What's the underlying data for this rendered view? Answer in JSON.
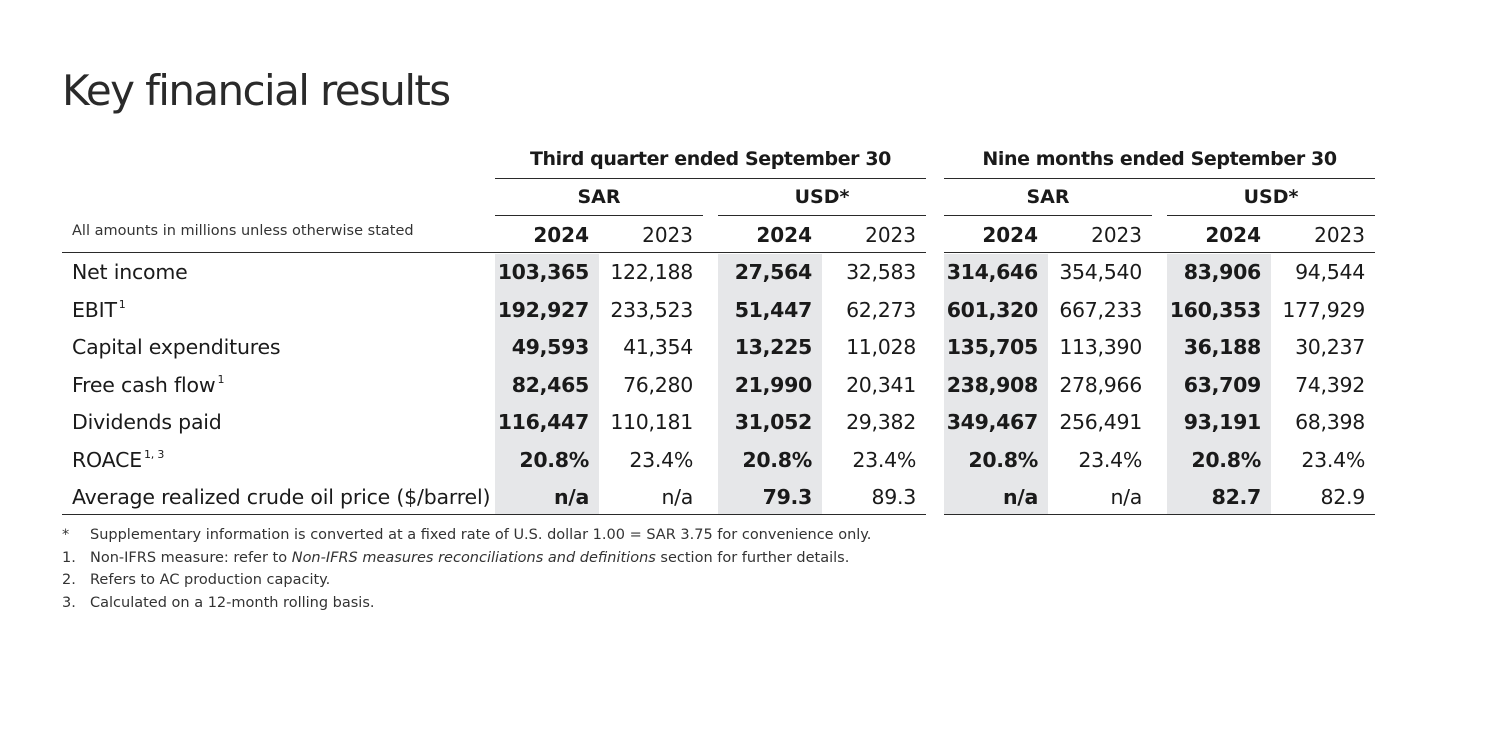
{
  "title": "Key financial results",
  "group_headers": [
    "Third quarter ended September 30",
    "Nine months ended September 30"
  ],
  "currency_headers": [
    "SAR",
    "USD*",
    "SAR",
    "USD*"
  ],
  "unit_note": "All amounts in millions unless otherwise stated",
  "years": [
    "2024",
    "2023",
    "2024",
    "2023",
    "2024",
    "2023",
    "2024",
    "2023"
  ],
  "rows": [
    {
      "label": "Net income",
      "sup": "",
      "values": [
        "103,365",
        "122,188",
        "27,564",
        "32,583",
        "314,646",
        "354,540",
        "83,906",
        "94,544"
      ]
    },
    {
      "label": "EBIT",
      "sup": "1",
      "values": [
        "192,927",
        "233,523",
        "51,447",
        "62,273",
        "601,320",
        "667,233",
        "160,353",
        "177,929"
      ]
    },
    {
      "label": "Capital expenditures",
      "sup": "",
      "values": [
        "49,593",
        "41,354",
        "13,225",
        "11,028",
        "135,705",
        "113,390",
        "36,188",
        "30,237"
      ]
    },
    {
      "label": "Free cash flow",
      "sup": "1",
      "values": [
        "82,465",
        "76,280",
        "21,990",
        "20,341",
        "238,908",
        "278,966",
        "63,709",
        "74,392"
      ]
    },
    {
      "label": "Dividends paid",
      "sup": "",
      "values": [
        "116,447",
        "110,181",
        "31,052",
        "29,382",
        "349,467",
        "256,491",
        "93,191",
        "68,398"
      ]
    },
    {
      "label": "ROACE",
      "sup": "1, 3",
      "values": [
        "20.8%",
        "23.4%",
        "20.8%",
        "23.4%",
        "20.8%",
        "23.4%",
        "20.8%",
        "23.4%"
      ]
    },
    {
      "label": "Average realized crude oil price ($/barrel)",
      "sup": "",
      "values": [
        "n/a",
        "n/a",
        "79.3",
        "89.3",
        "n/a",
        "n/a",
        "82.7",
        "82.9"
      ]
    }
  ],
  "footnotes": [
    {
      "mark": "*",
      "pre": "Supplementary information is converted at a fixed rate of U.S. dollar 1.00 = SAR 3.75 for convenience only.",
      "em": "",
      "post": ""
    },
    {
      "mark": "1.",
      "pre": "Non-IFRS measure: refer to ",
      "em": "Non-IFRS measures reconciliations and definitions",
      "post": " section for further details."
    },
    {
      "mark": "2.",
      "pre": "Refers to AC production capacity.",
      "em": "",
      "post": ""
    },
    {
      "mark": "3.",
      "pre": "Calculated on a 12-month rolling basis.",
      "em": "",
      "post": ""
    }
  ]
}
